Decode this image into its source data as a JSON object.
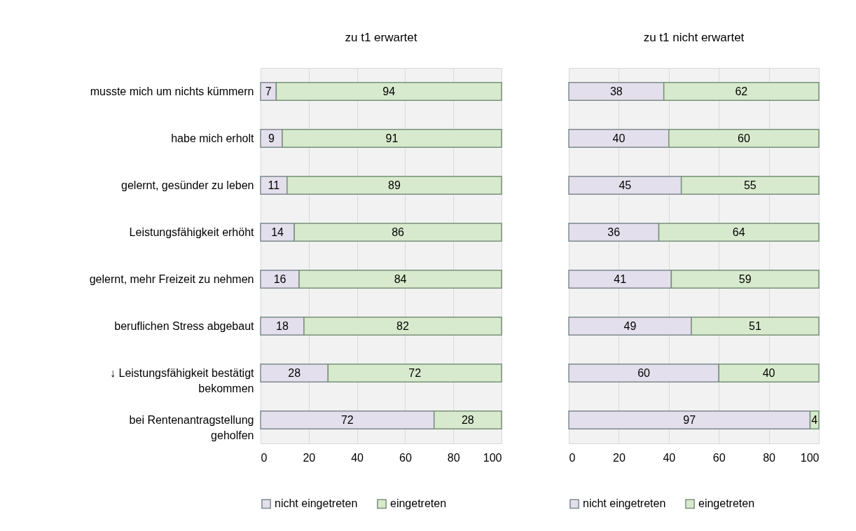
{
  "chart_data": [
    {
      "type": "bar",
      "title": "zu t1 erwartet",
      "orientation": "horizontal",
      "stacked": true,
      "categories": [
        "musste mich um nichts kümmern",
        "habe mich erholt",
        "gelernt, gesünder zu leben",
        "Leistungsfähigkeit erhöht",
        "gelernt, mehr Freizeit zu nehmen",
        "beruflichen Stress abgebaut",
        "↓ Leistungsfähigkeit bestätigt bekommen",
        "bei Rentenantragstellung geholfen"
      ],
      "series": [
        {
          "name": "nicht eingetreten",
          "color": "#e4dfec",
          "values": [
            6.5,
            9,
            11,
            14,
            16,
            18,
            28,
            72
          ],
          "value_labels": [
            "7",
            "9",
            "11",
            "14",
            "16",
            "18",
            "28",
            "72"
          ]
        },
        {
          "name": "eingetreten",
          "color": "#d8eacd",
          "values": [
            93.5,
            91,
            89,
            86,
            84,
            82,
            72,
            28
          ],
          "value_labels": [
            "94",
            "91",
            "89",
            "86",
            "84",
            "82",
            "72",
            "28"
          ]
        }
      ],
      "xlim": [
        0,
        100
      ],
      "xticks": [
        0,
        20,
        40,
        60,
        80,
        100
      ],
      "grid": "x",
      "legend": "bottom"
    },
    {
      "type": "bar",
      "title": "zu t1 nicht erwartet",
      "orientation": "horizontal",
      "stacked": true,
      "categories": [
        null,
        null,
        null,
        null,
        null,
        null,
        null,
        null
      ],
      "series": [
        {
          "name": "nicht eingetreten",
          "color": "#e4dfec",
          "values": [
            38,
            40,
            45,
            36,
            41,
            49,
            60,
            96.5
          ],
          "value_labels": [
            "38",
            "40",
            "45",
            "36",
            "41",
            "49",
            "60",
            "97"
          ]
        },
        {
          "name": "eingetreten",
          "color": "#d8eacd",
          "values": [
            62,
            60,
            55,
            64,
            59,
            51,
            40,
            3.5
          ],
          "value_labels": [
            "62",
            "60",
            "55",
            "64",
            "59",
            "51",
            "40",
            "4"
          ]
        }
      ],
      "xlim": [
        0,
        100
      ],
      "xticks": [
        0,
        20,
        40,
        60,
        80,
        100
      ],
      "grid": "x",
      "legend": "bottom"
    }
  ]
}
